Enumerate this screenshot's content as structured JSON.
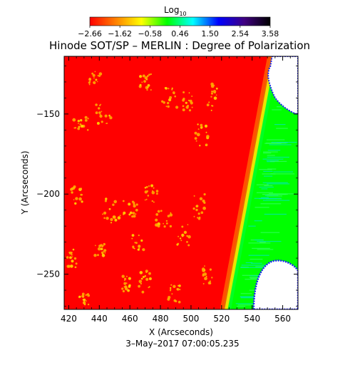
{
  "chart_data": {
    "type": "heatmap",
    "title": "Hinode SOT/SP – MERLIN : Degree of Polarization",
    "xlabel": "X (Arcseconds)",
    "ylabel": "Y (Arcseconds)",
    "subtitle": "3–May–2017 07:00:05.235",
    "xlim": [
      417,
      570
    ],
    "ylim": [
      -272,
      -114
    ],
    "x_ticks": [
      {
        "value": 420,
        "label": "420"
      },
      {
        "value": 440,
        "label": "440"
      },
      {
        "value": 460,
        "label": "460"
      },
      {
        "value": 480,
        "label": "480"
      },
      {
        "value": 500,
        "label": "500"
      },
      {
        "value": 520,
        "label": "520"
      },
      {
        "value": 540,
        "label": "540"
      },
      {
        "value": 560,
        "label": "560"
      }
    ],
    "y_ticks": [
      {
        "value": -150,
        "label": "−150"
      },
      {
        "value": -200,
        "label": "−200"
      },
      {
        "value": -250,
        "label": "−250"
      }
    ],
    "colorbar": {
      "title": "Log",
      "title_sub": "10",
      "range": [
        -2.66,
        3.58
      ],
      "tick_labels": [
        "−2.66",
        "−1.62",
        "−0.58",
        "0.46",
        "1.50",
        "2.54",
        "3.58"
      ],
      "colors": [
        "#ff0000",
        "#ff8000",
        "#ffff00",
        "#00ff00",
        "#00ffff",
        "#0000ff",
        "#400080",
        "#000000"
      ]
    },
    "regions": {
      "disk_color": "#ff0000",
      "bright_patch_color": "#ffb400",
      "limb_band_colors": [
        "#ff5a00",
        "#ffe600",
        "#00ff28"
      ],
      "off_limb_color": "#00ff00",
      "off_limb_teal_color": "#00e6b4",
      "off_limb_void_color": "#ffffff",
      "void_edge_color": "#1a1aff"
    }
  }
}
